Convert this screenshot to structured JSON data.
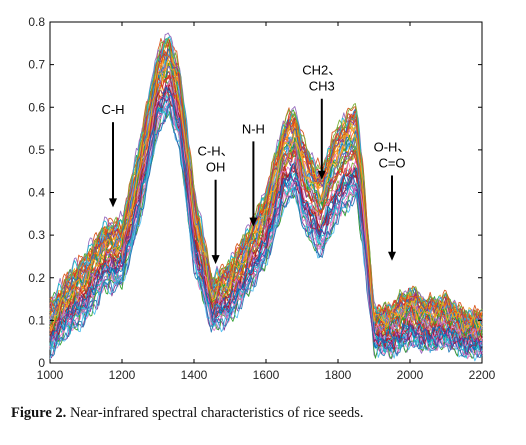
{
  "chart_data": {
    "type": "line",
    "title": "",
    "xlabel": "",
    "ylabel": "",
    "xlim": [
      1000,
      2200
    ],
    "ylim": [
      0,
      0.8
    ],
    "x_ticks": [
      1000,
      1200,
      1400,
      1600,
      1800,
      2000,
      2200
    ],
    "y_ticks": [
      0,
      0.1,
      0.2,
      0.3,
      0.4,
      0.5,
      0.6,
      0.7,
      0.8
    ],
    "x_tick_labels": [
      "1000",
      "1200",
      "1400",
      "1600",
      "1800",
      "2000",
      "2200"
    ],
    "y_tick_labels": [
      "0",
      "0.1",
      "0.2",
      "0.3",
      "0.4",
      "0.5",
      "0.6",
      "0.7",
      "0.8"
    ],
    "grid": false,
    "legend": "none",
    "series_count": 60,
    "median_spectrum": {
      "x": [
        1000,
        1050,
        1100,
        1150,
        1200,
        1250,
        1300,
        1330,
        1360,
        1400,
        1450,
        1500,
        1550,
        1600,
        1650,
        1680,
        1700,
        1750,
        1800,
        1850,
        1870,
        1900,
        1950,
        2000,
        2050,
        2100,
        2150,
        2200
      ],
      "y": [
        0.08,
        0.14,
        0.18,
        0.25,
        0.26,
        0.43,
        0.64,
        0.68,
        0.6,
        0.32,
        0.14,
        0.17,
        0.24,
        0.32,
        0.47,
        0.5,
        0.43,
        0.35,
        0.45,
        0.5,
        0.36,
        0.08,
        0.08,
        0.11,
        0.09,
        0.1,
        0.07,
        0.07
      ]
    },
    "spread": [
      0.06,
      0.07,
      0.08,
      0.08,
      0.08,
      0.1,
      0.1,
      0.1,
      0.1,
      0.1,
      0.06,
      0.07,
      0.08,
      0.09,
      0.11,
      0.11,
      0.11,
      0.11,
      0.12,
      0.12,
      0.1,
      0.05,
      0.06,
      0.07,
      0.06,
      0.06,
      0.05,
      0.05
    ],
    "series_colors": [
      "#0072BD",
      "#D95319",
      "#EDB120",
      "#7E2F8E",
      "#77AC30",
      "#4DBEEE",
      "#A2142F",
      "#1F77B4",
      "#FF7F0E",
      "#2CA02C",
      "#D62728",
      "#9467BD",
      "#17BECF",
      "#E377C2"
    ],
    "annotations": [
      {
        "lines": [
          "C-H"
        ],
        "arrow_x": 1175,
        "arrow_from_y": 0.565,
        "arrow_to_y": 0.365
      },
      {
        "lines": [
          "C-H、",
          "OH"
        ],
        "arrow_x": 1460,
        "arrow_from_y": 0.43,
        "arrow_to_y": 0.232
      },
      {
        "lines": [
          "N-H"
        ],
        "arrow_x": 1565,
        "arrow_from_y": 0.52,
        "arrow_to_y": 0.32
      },
      {
        "lines": [
          "CH2、",
          "CH3"
        ],
        "arrow_x": 1755,
        "arrow_from_y": 0.62,
        "arrow_to_y": 0.43
      },
      {
        "lines": [
          "O-H、",
          "C=O"
        ],
        "arrow_x": 1950,
        "arrow_from_y": 0.44,
        "arrow_to_y": 0.24
      }
    ]
  },
  "caption": {
    "label": "Figure 2.",
    "text": " Near-infrared spectral characteristics of rice seeds."
  }
}
